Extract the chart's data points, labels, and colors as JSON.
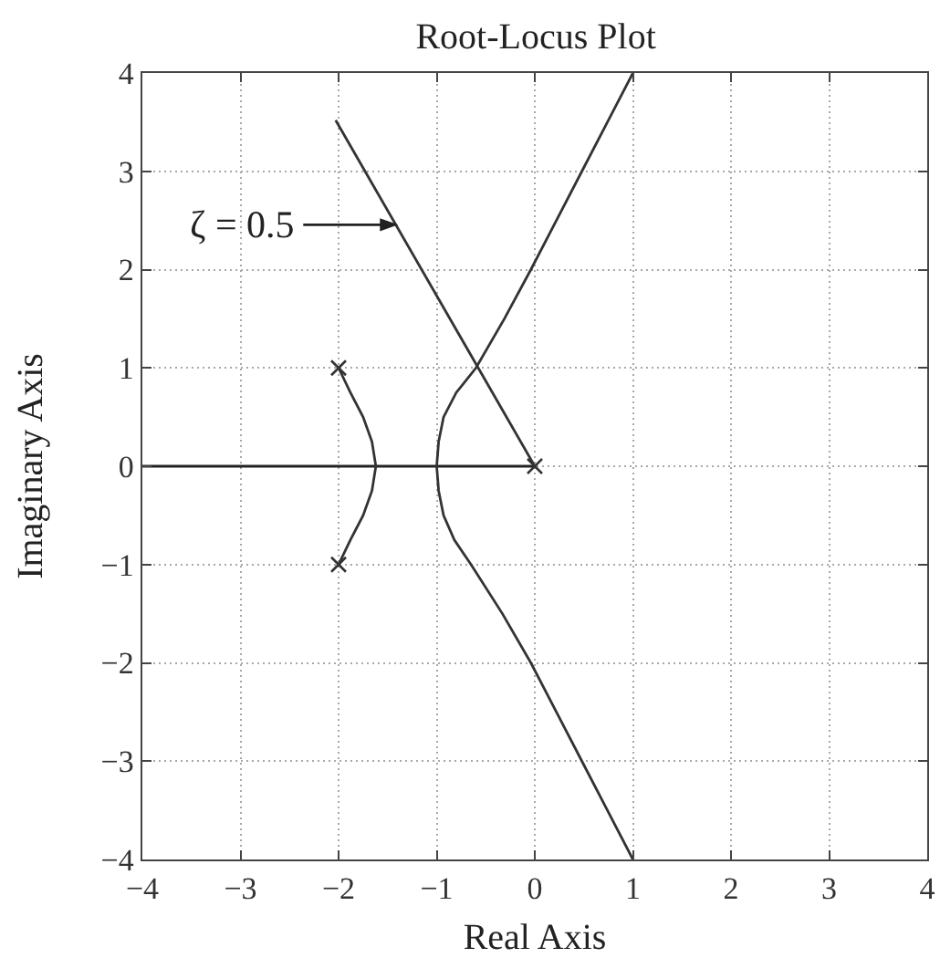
{
  "chart_data": {
    "type": "line",
    "title": "Root-Locus Plot",
    "xlabel": "Real Axis",
    "ylabel": "Imaginary Axis",
    "xlim": [
      -4,
      4
    ],
    "ylim": [
      -4,
      4
    ],
    "xticks": [
      -4,
      -3,
      -2,
      -1,
      0,
      1,
      2,
      3,
      4
    ],
    "yticks": [
      -4,
      -3,
      -2,
      -1,
      0,
      1,
      2,
      3,
      4
    ],
    "grid": true,
    "annotations": [
      "ζ = 0.5"
    ],
    "series": [
      {
        "color": "#222222",
        "x": [
          -4,
          0
        ],
        "values": [
          0,
          0
        ]
      },
      {
        "color": "#333333",
        "x": [
          -2,
          -1.88,
          -1.75,
          -1.66,
          -1.62,
          -1.66,
          -1.75,
          -1.88,
          -2
        ],
        "values": [
          1,
          0.75,
          0.5,
          0.25,
          0,
          -0.25,
          -0.5,
          -0.75,
          -1
        ]
      },
      {
        "color": "#333333",
        "x": [
          1,
          0.74,
          0.48,
          0.22,
          -0.04,
          -0.31,
          -0.6,
          -0.8,
          -0.93,
          -0.98,
          -1,
          -0.98,
          -0.93,
          -0.82,
          -0.65,
          -0.33,
          -0.04,
          0.22,
          0.48,
          0.74,
          1
        ],
        "values": [
          4,
          3.5,
          3,
          2.5,
          2,
          1.5,
          1,
          0.75,
          0.5,
          0.25,
          0,
          -0.25,
          -0.5,
          -0.75,
          -1,
          -1.5,
          -2,
          -2.5,
          -3,
          -3.5,
          -4
        ]
      },
      {
        "color": "#333333",
        "x": [
          0,
          -2.03
        ],
        "values": [
          0,
          3.52
        ]
      },
      {
        "type": "scatter",
        "marker": "cross",
        "color": "#333333",
        "x": [
          -2,
          -2,
          0
        ],
        "values": [
          1,
          -1,
          0
        ]
      }
    ]
  }
}
